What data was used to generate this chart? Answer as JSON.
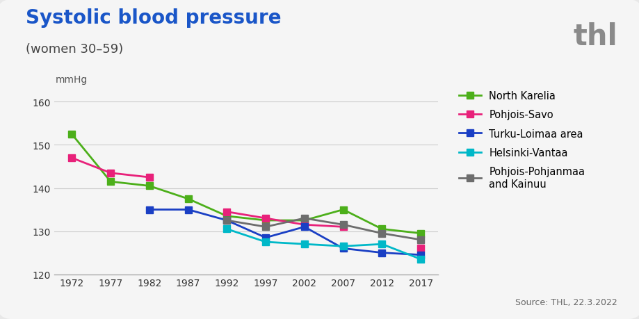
{
  "title": "Systolic blood pressure",
  "subtitle": "(women 30–59)",
  "ylabel": "mmHg",
  "source": "Source: THL, 22.3.2022",
  "thl_logo": "thl",
  "years": [
    1972,
    1977,
    1982,
    1987,
    1992,
    1997,
    2002,
    2007,
    2012,
    2017
  ],
  "series": [
    {
      "name": "North Karelia",
      "color": "#4caf1a",
      "marker": "s",
      "data": [
        152.5,
        141.5,
        140.5,
        137.5,
        133.5,
        132.5,
        132.5,
        135.0,
        130.5,
        129.5
      ]
    },
    {
      "name": "Pohjois-Savo",
      "color": "#e8217a",
      "marker": "s",
      "data": [
        147.0,
        143.5,
        142.5,
        null,
        134.5,
        133.0,
        131.5,
        131.0,
        null,
        126.0
      ]
    },
    {
      "name": "Turku-Loimaa area",
      "color": "#1a3fc4",
      "marker": "s",
      "data": [
        null,
        null,
        135.0,
        135.0,
        132.5,
        128.5,
        131.0,
        126.0,
        125.0,
        124.5
      ]
    },
    {
      "name": "Helsinki-Vantaa",
      "color": "#00b8c8",
      "marker": "s",
      "data": [
        null,
        null,
        null,
        null,
        130.5,
        127.5,
        127.0,
        126.5,
        127.0,
        123.5
      ]
    },
    {
      "name": "Pohjois-Pohjanmaa\nand Kainuu",
      "color": "#6d6d6d",
      "marker": "s",
      "data": [
        null,
        null,
        null,
        null,
        132.5,
        131.0,
        133.0,
        131.5,
        129.5,
        128.0
      ]
    }
  ],
  "ylim": [
    120,
    163
  ],
  "yticks": [
    120,
    130,
    140,
    150,
    160
  ],
  "outer_bg": "#e8e8e8",
  "inner_bg": "#f5f5f5",
  "title_color": "#1a56c8",
  "subtitle_color": "#444444",
  "title_fontsize": 20,
  "subtitle_fontsize": 13,
  "ylabel_fontsize": 10,
  "tick_fontsize": 10,
  "legend_fontsize": 10.5,
  "source_fontsize": 9
}
